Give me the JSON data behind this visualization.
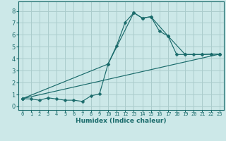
{
  "xlabel": "Humidex (Indice chaleur)",
  "background_color": "#cce8e8",
  "grid_color": "#aacccc",
  "line_color": "#1a6b6b",
  "xlim": [
    -0.5,
    23.5
  ],
  "ylim": [
    -0.3,
    8.8
  ],
  "xticks": [
    0,
    1,
    2,
    3,
    4,
    5,
    6,
    7,
    8,
    9,
    10,
    11,
    12,
    13,
    14,
    15,
    16,
    17,
    18,
    19,
    20,
    21,
    22,
    23
  ],
  "yticks": [
    0,
    1,
    2,
    3,
    4,
    5,
    6,
    7,
    8
  ],
  "line1_x": [
    0,
    1,
    2,
    3,
    4,
    5,
    6,
    7,
    8,
    9,
    10,
    11,
    12,
    13,
    14,
    15,
    16,
    17,
    18,
    19,
    20,
    21,
    22,
    23
  ],
  "line1_y": [
    0.65,
    0.62,
    0.52,
    0.72,
    0.62,
    0.52,
    0.52,
    0.42,
    0.88,
    1.05,
    3.55,
    5.1,
    7.05,
    7.85,
    7.4,
    7.52,
    6.3,
    5.9,
    4.35,
    4.35,
    4.35,
    4.35,
    4.38,
    4.38
  ],
  "line2_x": [
    0,
    10,
    13,
    14,
    15,
    17,
    19,
    21,
    22,
    23
  ],
  "line2_y": [
    0.65,
    3.55,
    7.85,
    7.4,
    7.52,
    5.9,
    4.35,
    4.35,
    4.38,
    4.38
  ],
  "line3_x": [
    0,
    23
  ],
  "line3_y": [
    0.65,
    4.38
  ],
  "marker_size": 2.5
}
